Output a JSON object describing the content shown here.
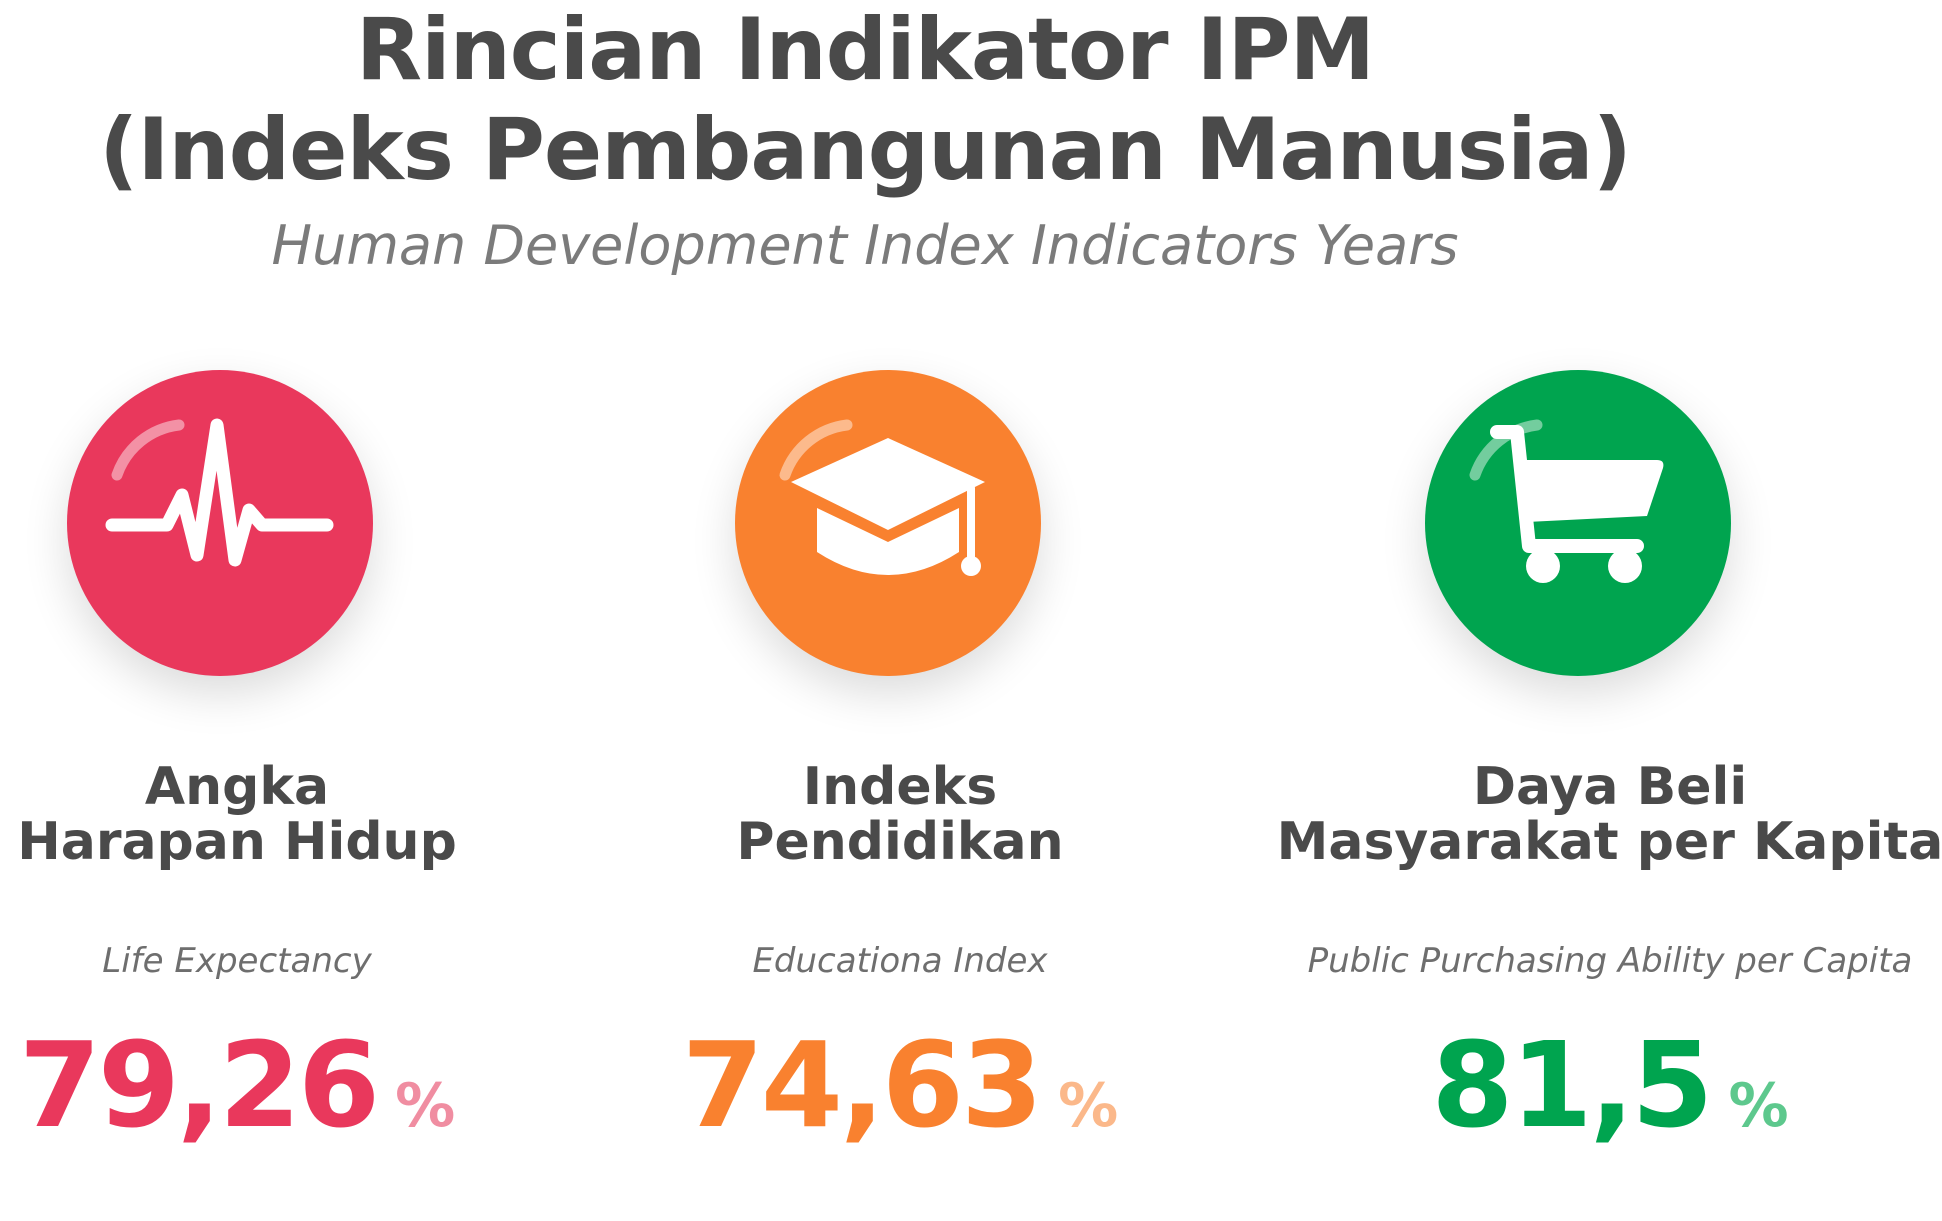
{
  "header": {
    "title_line1": "Rincian Indikator IPM",
    "title_line2": "(Indeks Pembangunan Manusia)",
    "subtitle": "Human Development Index Indicators Years"
  },
  "indicators": [
    {
      "icon": "heartbeat-icon",
      "color": "#e9385c",
      "light_color": "#f08da1",
      "title_line1": "Angka",
      "title_line2": "Harapan Hidup",
      "english": "Life Expectancy",
      "value": "79,26",
      "unit": "%"
    },
    {
      "icon": "graduation-cap-icon",
      "color": "#f9812f",
      "light_color": "#fbb88a",
      "title_line1": "Indeks",
      "title_line2": "Pendidikan",
      "english": "Educationa Index",
      "value": "74,63",
      "unit": "%"
    },
    {
      "icon": "shopping-cart-icon",
      "color": "#00a44f",
      "light_color": "#5dc88d",
      "title_line1": "Daya Beli",
      "title_line2": "Masyarakat per Kapita",
      "english": "Public Purchasing Ability per Capita",
      "value": "81,5",
      "unit": "%"
    }
  ]
}
